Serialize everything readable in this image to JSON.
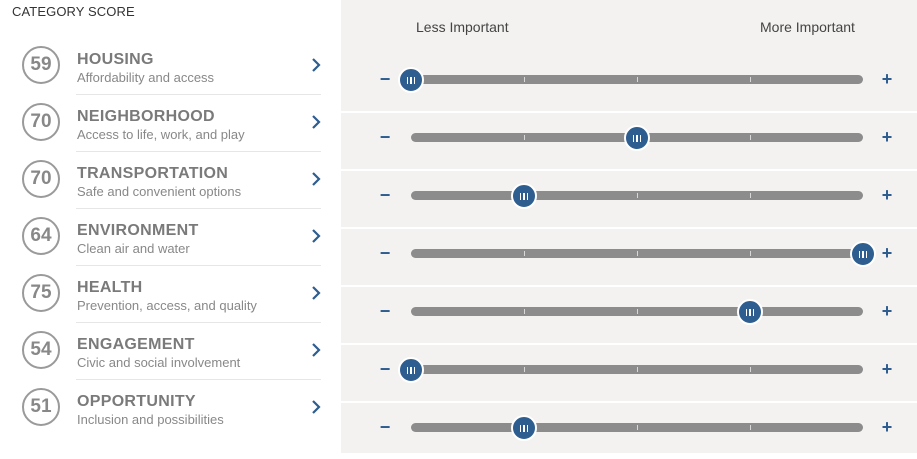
{
  "header": {
    "label": "CATEGORY SCORE"
  },
  "scale": {
    "less": "Less Important",
    "more": "More Important"
  },
  "colors": {
    "accent": "#2e5d8f",
    "track": "#8c8c8c",
    "panel": "#f3f2f0"
  },
  "categories": [
    {
      "score": "59",
      "title": "HOUSING",
      "subtitle": "Affordability and access",
      "importance": 0
    },
    {
      "score": "70",
      "title": "NEIGHBORHOOD",
      "subtitle": "Access to life, work, and play",
      "importance": 0.5
    },
    {
      "score": "70",
      "title": "TRANSPORTATION",
      "subtitle": "Safe and convenient options",
      "importance": 0.25
    },
    {
      "score": "64",
      "title": "ENVIRONMENT",
      "subtitle": "Clean air and water",
      "importance": 1
    },
    {
      "score": "75",
      "title": "HEALTH",
      "subtitle": "Prevention, access, and quality",
      "importance": 0.75
    },
    {
      "score": "54",
      "title": "ENGAGEMENT",
      "subtitle": "Civic and social involvement",
      "importance": 0
    },
    {
      "score": "51",
      "title": "OPPORTUNITY",
      "subtitle": "Inclusion and possibilities",
      "importance": 0.25
    }
  ],
  "controls": {
    "minus": "−",
    "plus": "+"
  }
}
